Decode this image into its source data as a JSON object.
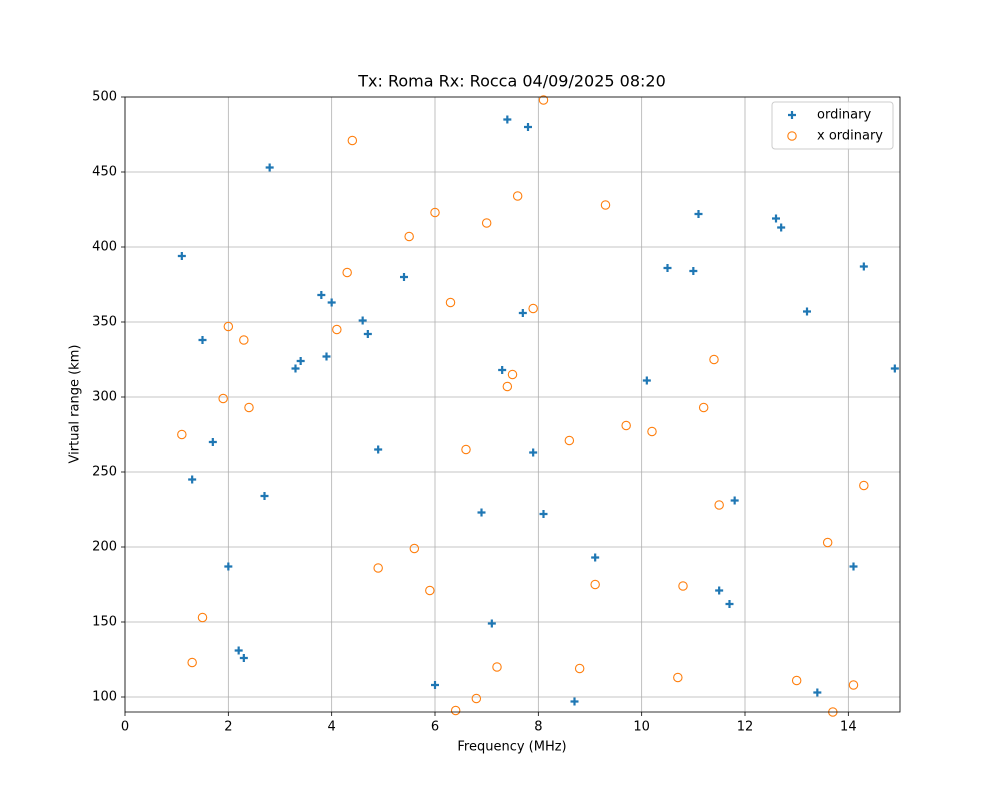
{
  "chart_data": {
    "type": "scatter",
    "title": "Tx: Roma Rx: Rocca 04/09/2025 08:20",
    "x_label": "Frequency (MHz)",
    "y_label": "Virtual range (km)",
    "xlim": [
      0,
      15
    ],
    "ylim": [
      90,
      500
    ],
    "xticks": [
      0,
      2,
      4,
      6,
      8,
      10,
      12,
      14
    ],
    "yticks": [
      100,
      150,
      200,
      250,
      300,
      350,
      400,
      450,
      500
    ],
    "grid": true,
    "legend": "upper right",
    "series": [
      {
        "name": "ordinary",
        "color": "#1f77b4",
        "marker": "plus",
        "x": [
          1.1,
          2.8,
          7.4,
          7.8,
          1.5,
          1.7,
          1.3,
          2.0,
          2.2,
          2.3,
          2.7,
          3.3,
          3.4,
          3.8,
          4.0,
          3.9,
          4.6,
          4.7,
          4.9,
          5.4,
          6.0,
          6.9,
          7.1,
          7.3,
          7.7,
          7.9,
          8.1,
          8.7,
          9.1,
          10.1,
          10.5,
          11.0,
          11.1,
          11.5,
          11.7,
          11.8,
          12.6,
          12.7,
          13.2,
          13.4,
          14.1,
          14.3,
          14.9
        ],
        "values": [
          394,
          453,
          485,
          480,
          338,
          270,
          245,
          187,
          131,
          126,
          234,
          319,
          324,
          368,
          363,
          327,
          351,
          342,
          265,
          380,
          108,
          223,
          149,
          318,
          356,
          263,
          222,
          97,
          193,
          311,
          386,
          384,
          422,
          171,
          162,
          231,
          419,
          413,
          357,
          103,
          187,
          387,
          319
        ]
      },
      {
        "name": "x ordinary",
        "color": "#ff7f0e",
        "marker": "circle",
        "x": [
          1.1,
          1.3,
          1.5,
          1.9,
          2.0,
          2.3,
          2.4,
          4.3,
          4.4,
          4.1,
          4.9,
          5.5,
          5.6,
          5.9,
          6.0,
          6.3,
          6.4,
          6.6,
          6.8,
          7.0,
          7.2,
          7.4,
          7.5,
          7.6,
          7.9,
          8.1,
          8.6,
          8.8,
          9.1,
          9.3,
          9.7,
          10.2,
          10.7,
          10.8,
          11.2,
          11.4,
          11.5,
          13.0,
          13.6,
          13.7,
          14.1,
          14.3
        ],
        "values": [
          275,
          123,
          153,
          299,
          347,
          338,
          293,
          383,
          471,
          345,
          186,
          407,
          199,
          171,
          423,
          363,
          91,
          265,
          99,
          416,
          120,
          307,
          315,
          434,
          359,
          498,
          271,
          119,
          175,
          428,
          281,
          277,
          113,
          174,
          293,
          325,
          228,
          111,
          203,
          90,
          108,
          241
        ]
      }
    ]
  }
}
